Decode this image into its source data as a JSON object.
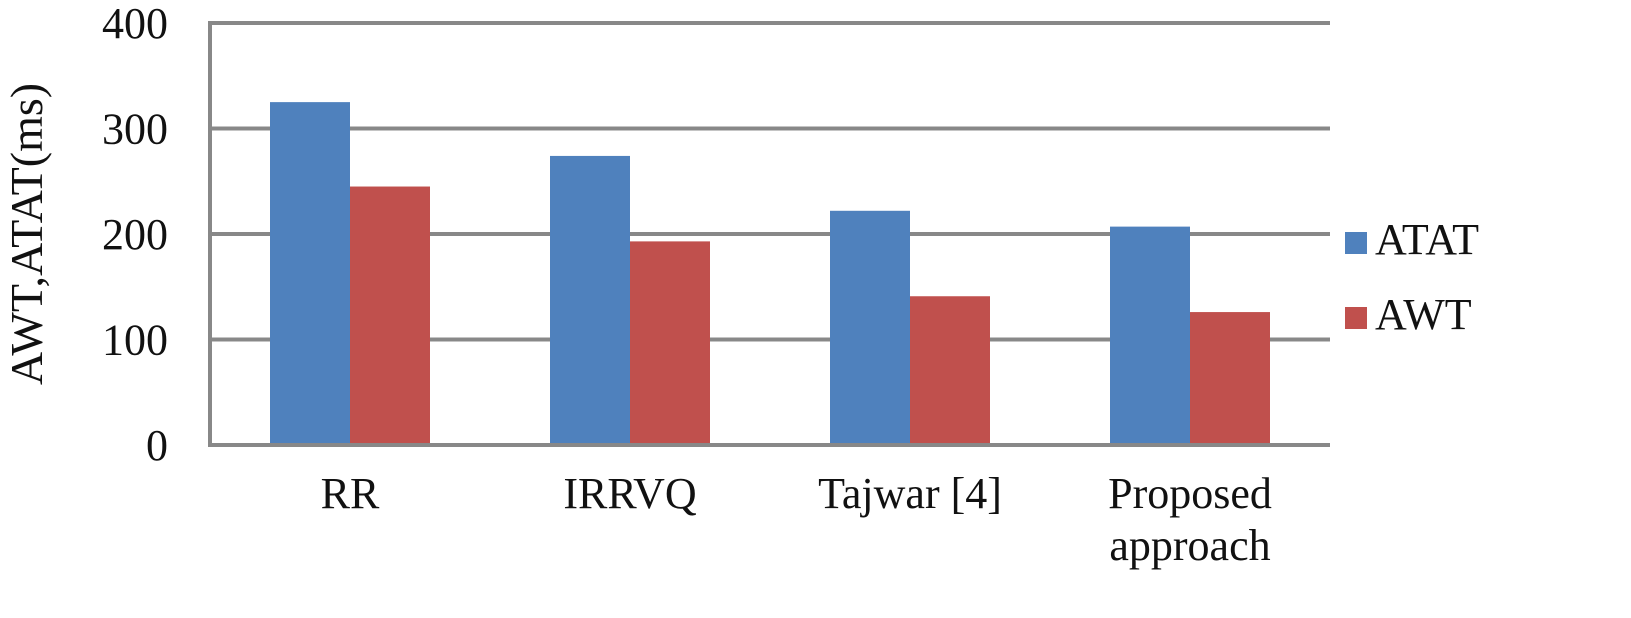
{
  "chart_data": {
    "type": "bar",
    "title": "",
    "xlabel": "",
    "ylabel": "AWT,ATAT(ms)",
    "ylim": [
      0,
      400
    ],
    "yticks": [
      0,
      100,
      200,
      300,
      400
    ],
    "grid": true,
    "legend_position": "right",
    "categories": [
      "RR",
      "IRRVQ",
      "Tajwar [4]",
      "Proposed approach"
    ],
    "series": [
      {
        "name": "ATAT",
        "color": "#4f81bd",
        "values": [
          325,
          274,
          222,
          207
        ]
      },
      {
        "name": "AWT",
        "color": "#c0504d",
        "values": [
          245,
          193,
          141,
          126
        ]
      }
    ]
  }
}
